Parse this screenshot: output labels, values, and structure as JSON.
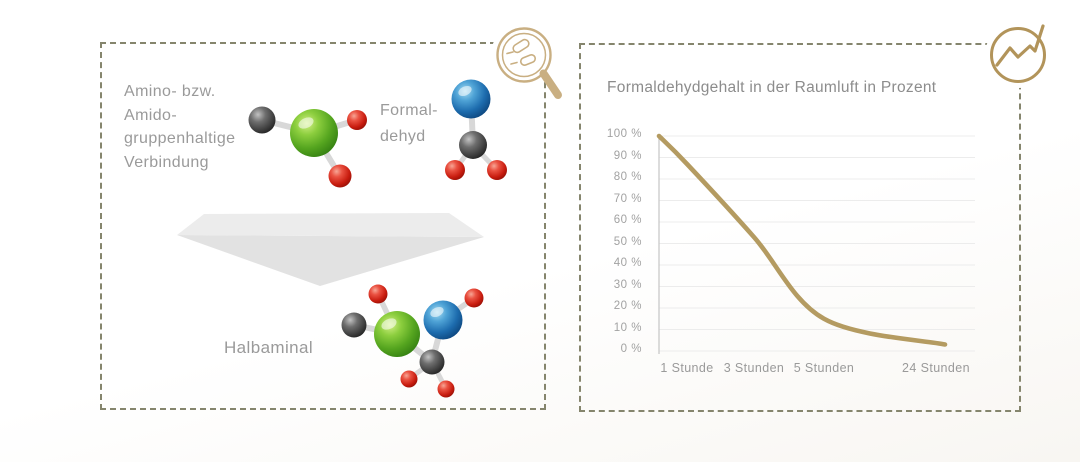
{
  "palette": {
    "accent_gold": "#b9995e",
    "dashed_border": "#85856d",
    "text_gray": "#9a9a9a",
    "title_gray": "#8c8c8c",
    "grid_gray": "#ececec",
    "axis_gray": "#c9c9c9",
    "arrow_gray": "#e2e2e2",
    "molecule_green": "#6fbb2a",
    "molecule_blue": "#2a7cb8",
    "molecule_red": "#d8291b",
    "molecule_carbon": "#3c3c3c",
    "molecule_stick": "#d8d8d8"
  },
  "left_panel": {
    "corner_icon": "magnifier-molecules-icon",
    "reactant_lines": [
      "Amino- bzw.",
      "Amido-",
      "gruppenhaltige",
      "Verbindung"
    ],
    "formaldehyde_lines": [
      "Formal-",
      "dehyd"
    ],
    "product_label": "Halbaminal",
    "molecules": [
      "amino-amido-compound",
      "formaldehyde",
      "halbaminal"
    ]
  },
  "right_panel": {
    "corner_icon": "trend-line-icon",
    "title": "Formaldehydgehalt in der Raumluft in Prozent"
  },
  "chart_data": {
    "type": "line",
    "title": "Formaldehydgehalt in der Raumluft in Prozent",
    "xlabel": "",
    "ylabel": "",
    "ylim": [
      0,
      100
    ],
    "grid": true,
    "legend": false,
    "line_color": "#b49b61",
    "y_tick_labels": [
      "100 %",
      "90 %",
      "80 %",
      "70 %",
      "60 %",
      "50 %",
      "40 %",
      "30 %",
      "20 %",
      "10 %",
      "0 %"
    ],
    "x_tick_labels": [
      "1 Stunde",
      "3 Stunden",
      "5 Stunden",
      "24 Stunden"
    ],
    "series": [
      {
        "name": "Formaldehydgehalt",
        "points": [
          {
            "x": "0",
            "y": 100
          },
          {
            "x": "1 Stunde",
            "y": 87
          },
          {
            "x": "3 Stunden",
            "y": 53
          },
          {
            "x": "5 Stunden",
            "y": 15
          },
          {
            "x": "24 Stunden",
            "y": 3
          }
        ]
      }
    ]
  }
}
